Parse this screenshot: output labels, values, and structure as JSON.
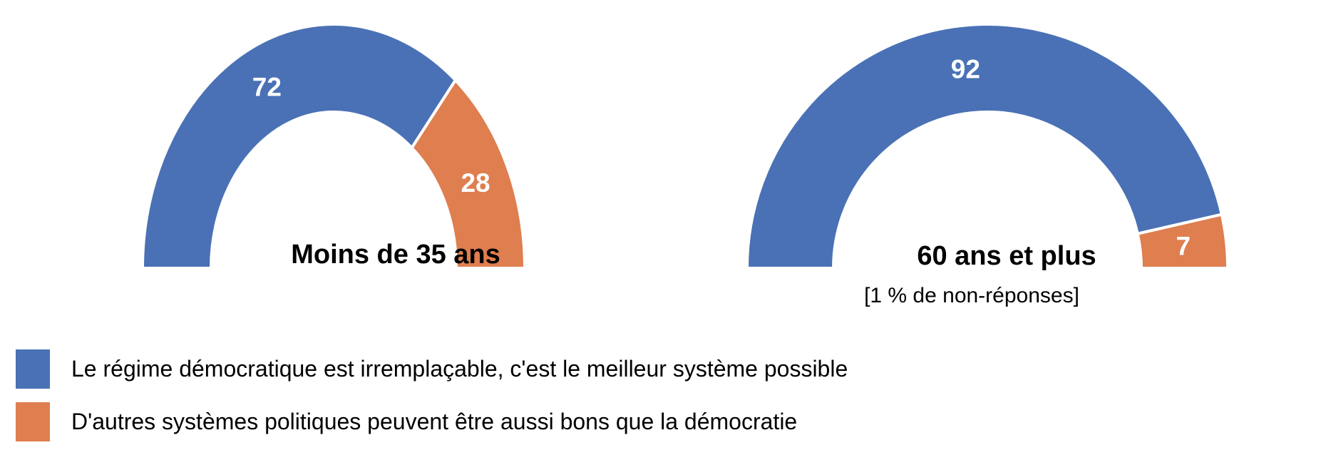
{
  "figure": {
    "background": "#FFFFFF"
  },
  "chart_data": {
    "type": "pie",
    "variant": "semicircle-donut-pair",
    "unit": "%",
    "grid": false,
    "legend_position": "bottom-left",
    "categories": [
      "Le régime démocratique est irremplaçable, c'est le meilleur système possible",
      "D'autres systèmes politiques peuvent être aussi bons que la démocratie"
    ],
    "colors": [
      "#4A71B5",
      "#DF7E4F"
    ],
    "value_label_color": "#FFFFFF",
    "separator_color": "#FFFFFF",
    "charts": [
      {
        "title": "Moins de 35 ans",
        "note": "",
        "values": [
          72,
          28
        ]
      },
      {
        "title": "60 ans et plus",
        "note": "[1 % de non-réponses]",
        "values": [
          92,
          7
        ]
      }
    ]
  }
}
